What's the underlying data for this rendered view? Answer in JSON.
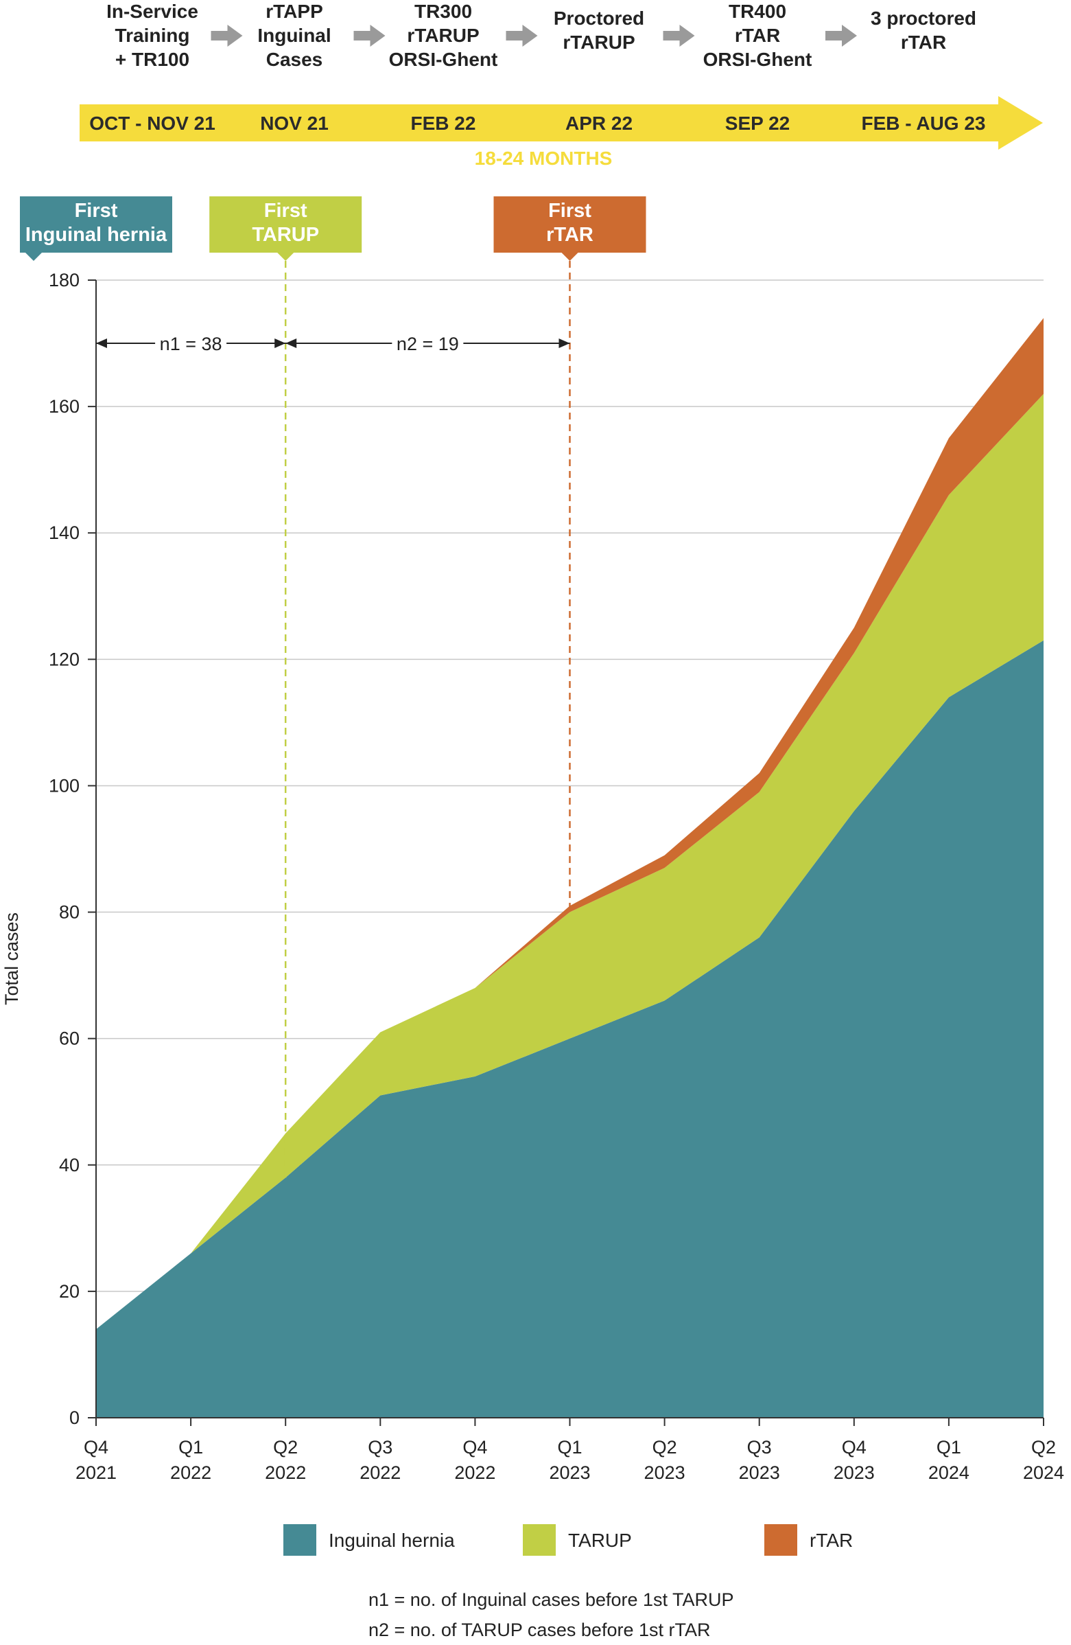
{
  "timeline": {
    "steps": [
      {
        "lines": [
          "In-Service",
          "Training",
          "+ TR100"
        ],
        "period": "OCT - NOV 21"
      },
      {
        "lines": [
          "rTAPP",
          "Inguinal",
          "Cases"
        ],
        "period": "NOV 21"
      },
      {
        "lines": [
          "TR300",
          "rTARUP",
          "ORSI-Ghent"
        ],
        "period": "FEB 22"
      },
      {
        "lines": [
          "Proctored",
          "rTARUP"
        ],
        "period": "APR 22"
      },
      {
        "lines": [
          "TR400",
          "rTAR",
          "ORSI-Ghent"
        ],
        "period": "SEP 22"
      },
      {
        "lines": [
          "3 proctored",
          "rTAR"
        ],
        "period": "FEB - AUG 23"
      }
    ],
    "duration": "18-24 MONTHS",
    "arrow_color": "#f5dc3c",
    "duration_color": "#f5dc3c",
    "step_arrow_color": "#9a9a9a",
    "step_arrow_icon": "right-arrow-icon"
  },
  "milestones": [
    {
      "lines": [
        "First",
        "Inguinal hernia"
      ],
      "x": "Q4 2021",
      "color": "#458a94"
    },
    {
      "lines": [
        "First",
        "TARUP"
      ],
      "x": "Q2 2022",
      "color": "#c1cf45"
    },
    {
      "lines": [
        "First",
        "rTAR"
      ],
      "x": "Q1 2023",
      "color": "#cd6b30"
    }
  ],
  "annotations": [
    {
      "text": "n1 = 38",
      "from": "Q4 2021",
      "to": "Q2 2022",
      "y": 170
    },
    {
      "text": "n2 = 19",
      "from": "Q2 2022",
      "to": "Q1 2023",
      "y": 170
    }
  ],
  "chart_data": {
    "type": "area",
    "stacked": true,
    "categories": [
      [
        "Q4",
        "2021"
      ],
      [
        "Q1",
        "2022"
      ],
      [
        "Q2",
        "2022"
      ],
      [
        "Q3",
        "2022"
      ],
      [
        "Q4",
        "2022"
      ],
      [
        "Q1",
        "2023"
      ],
      [
        "Q2",
        "2023"
      ],
      [
        "Q3",
        "2023"
      ],
      [
        "Q4",
        "2023"
      ],
      [
        "Q1",
        "2024"
      ],
      [
        "Q2",
        "2024"
      ]
    ],
    "series": [
      {
        "name": "Inguinal hernia",
        "color": "#458a94",
        "values": [
          14,
          26,
          38,
          51,
          54,
          60,
          66,
          76,
          96,
          114,
          123
        ]
      },
      {
        "name": "TARUP",
        "color": "#c1cf45",
        "values": [
          0,
          0,
          7,
          10,
          14,
          20,
          21,
          23,
          25,
          32,
          39
        ]
      },
      {
        "name": "rTAR",
        "color": "#cd6b30",
        "values": [
          0,
          0,
          0,
          0,
          0,
          1,
          2,
          3,
          4,
          9,
          12
        ]
      }
    ],
    "ylabel": "Total cases",
    "xlabel": "",
    "ylim": [
      0,
      180
    ],
    "yticks": [
      0,
      20,
      40,
      60,
      80,
      100,
      120,
      140,
      160,
      180
    ],
    "grid": true,
    "legend_position": "bottom"
  },
  "notes": [
    "n1 = no. of Inguinal cases before 1st TARUP",
    "n2 = no. of TARUP cases before 1st rTAR"
  ]
}
